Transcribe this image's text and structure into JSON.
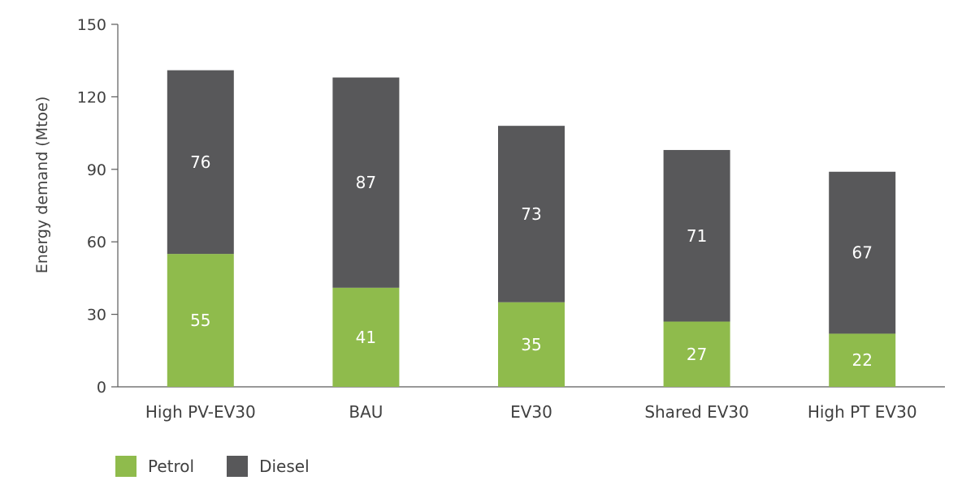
{
  "chart_data": {
    "type": "bar",
    "stacked": true,
    "categories": [
      "High PV-EV30",
      "BAU",
      "EV30",
      "Shared EV30",
      "High PT EV30"
    ],
    "series": [
      {
        "name": "Petrol",
        "values": [
          55,
          41,
          35,
          27,
          22
        ],
        "color": "#8fbb4c"
      },
      {
        "name": "Diesel",
        "values": [
          76,
          87,
          73,
          71,
          67
        ],
        "color": "#58585a"
      }
    ],
    "ylabel": "Energy demand (Mtoe)",
    "xlabel": "",
    "ylim": [
      0,
      150
    ],
    "yticks": [
      0,
      30,
      60,
      90,
      120,
      150
    ],
    "grid": false,
    "legend_position": "bottom-left"
  }
}
